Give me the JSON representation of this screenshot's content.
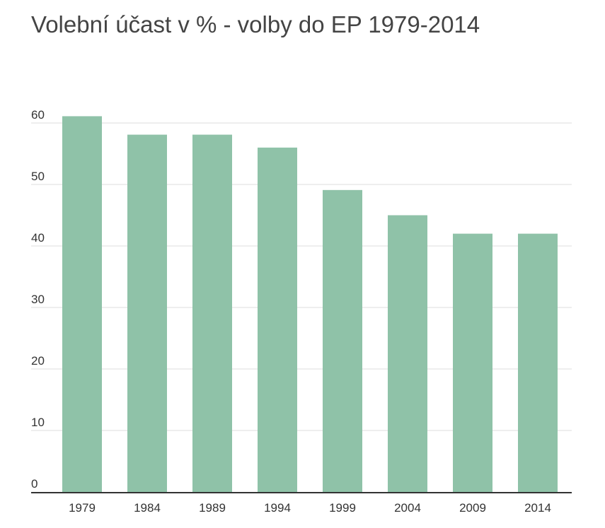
{
  "chart_data": {
    "type": "bar",
    "title": "Volební účast v % - volby do EP 1979-2014",
    "categories": [
      "1979",
      "1984",
      "1989",
      "1994",
      "1999",
      "2004",
      "2009",
      "2014"
    ],
    "values": [
      61.1,
      58.1,
      58.1,
      56.0,
      49.1,
      45.0,
      42.0,
      42.0
    ],
    "y_ticks": [
      "0",
      "10",
      "20",
      "30",
      "40",
      "50",
      "60"
    ],
    "ylim": [
      0,
      60
    ],
    "grid": true,
    "bar_color": "#8fc2a8",
    "grid_color": "#dddddd",
    "axis_color": "#333333"
  }
}
